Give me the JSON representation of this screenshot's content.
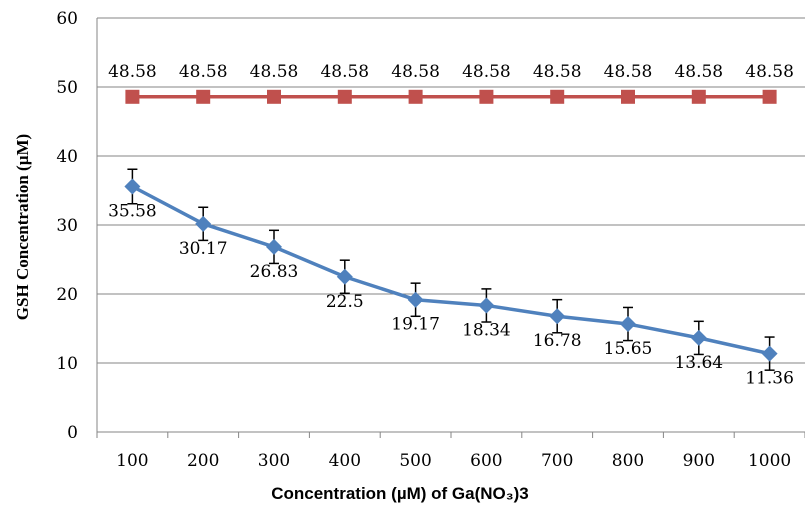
{
  "chart_data": {
    "type": "line",
    "title": "",
    "xlabel": "Concentration (µM) of Ga(NO₃)3",
    "ylabel": "GSH Concentration (µM)",
    "categories": [
      "100",
      "200",
      "300",
      "400",
      "500",
      "600",
      "700",
      "800",
      "900",
      "1000"
    ],
    "ylim": [
      0,
      60
    ],
    "yticks": [
      "0",
      "10",
      "20",
      "30",
      "40",
      "50",
      "60"
    ],
    "grid": "horizontal",
    "legend": "none",
    "series": [
      {
        "color": "#C0504D",
        "marker": "square",
        "values": [
          48.58,
          48.58,
          48.58,
          48.58,
          48.58,
          48.58,
          48.58,
          48.58,
          48.58,
          48.58
        ],
        "labels": [
          "48.58",
          "48.58",
          "48.58",
          "48.58",
          "48.58",
          "48.58",
          "48.58",
          "48.58",
          "48.58",
          "48.58"
        ],
        "errors": null
      },
      {
        "color": "#4F81BD",
        "marker": "diamond",
        "values": [
          35.58,
          30.17,
          26.83,
          22.5,
          19.17,
          18.34,
          16.78,
          15.65,
          13.64,
          11.36
        ],
        "labels": [
          "35.58",
          "30.17",
          "26.83",
          "22.5",
          "19.17",
          "18.34",
          "16.78",
          "15.65",
          "13.64",
          "11.36"
        ],
        "errors": [
          2.5,
          2.4,
          2.4,
          2.4,
          2.4,
          2.4,
          2.4,
          2.4,
          2.4,
          2.4
        ]
      }
    ]
  }
}
